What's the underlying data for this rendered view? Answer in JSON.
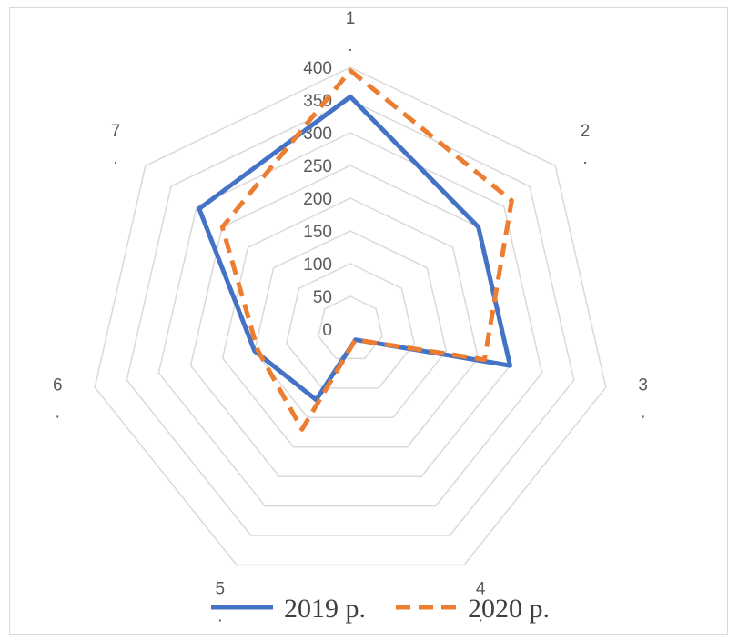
{
  "chart_data": {
    "type": "radar",
    "categories": [
      "1\n.",
      "2\n.",
      "3\n.",
      "4\n.",
      "5\n.",
      "6\n.",
      "7\n."
    ],
    "series": [
      {
        "name": "2019 р.",
        "values": [
          355,
          250,
          250,
          18,
          120,
          150,
          295
        ],
        "color": "#4472C4",
        "dash": "solid"
      },
      {
        "name": "2020 р.",
        "values": [
          395,
          315,
          210,
          18,
          170,
          145,
          250
        ],
        "color": "#ED7D31",
        "dash": "dashed"
      }
    ],
    "ticks": [
      "0",
      "50",
      "100",
      "150",
      "200",
      "250",
      "300",
      "350",
      "400"
    ],
    "rlim": [
      0,
      400
    ],
    "grid": true,
    "legend": "bottom"
  }
}
